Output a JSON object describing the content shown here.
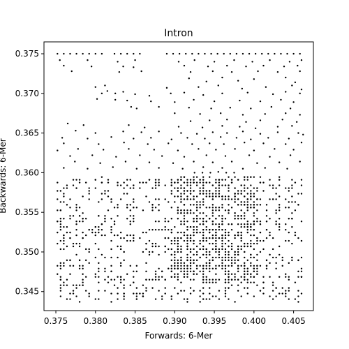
{
  "chart_data": {
    "type": "scatter",
    "title": "Intron",
    "xlabel": "Forwards: 6-Mer",
    "ylabel": "Backwards: 6-Mer",
    "xlim": [
      0.3735,
      0.4075
    ],
    "ylim": [
      0.3426,
      0.3765
    ],
    "xticks": [
      0.375,
      0.38,
      0.385,
      0.39,
      0.395,
      0.4,
      0.405
    ],
    "xtick_labels": [
      "0.375",
      "0.380",
      "0.385",
      "0.390",
      "0.395",
      "0.400",
      "0.405"
    ],
    "yticks": [
      0.345,
      0.35,
      0.355,
      0.36,
      0.365,
      0.37,
      0.375
    ],
    "ytick_labels": [
      "0.345",
      "0.350",
      "0.355",
      "0.360",
      "0.365",
      "0.370",
      "0.375"
    ],
    "grid": false,
    "marker_color": "#000000",
    "series": [
      {
        "points": [
          [
            0.3752,
            0.375
          ],
          [
            0.376,
            0.375
          ],
          [
            0.3768,
            0.375
          ],
          [
            0.3776,
            0.375
          ],
          [
            0.3784,
            0.375
          ],
          [
            0.3792,
            0.375
          ],
          [
            0.38,
            0.375
          ],
          [
            0.3808,
            0.375
          ],
          [
            0.3824,
            0.375
          ],
          [
            0.3832,
            0.375
          ],
          [
            0.384,
            0.375
          ],
          [
            0.3848,
            0.375
          ],
          [
            0.3856,
            0.375
          ],
          [
            0.389,
            0.375
          ],
          [
            0.3898,
            0.375
          ],
          [
            0.3906,
            0.375
          ],
          [
            0.3914,
            0.375
          ],
          [
            0.3922,
            0.375
          ],
          [
            0.393,
            0.375
          ],
          [
            0.3938,
            0.375
          ],
          [
            0.3946,
            0.375
          ],
          [
            0.3954,
            0.375
          ],
          [
            0.3962,
            0.375
          ],
          [
            0.397,
            0.375
          ],
          [
            0.3978,
            0.375
          ],
          [
            0.3986,
            0.375
          ],
          [
            0.3994,
            0.375
          ],
          [
            0.4002,
            0.375
          ],
          [
            0.401,
            0.375
          ],
          [
            0.4018,
            0.375
          ],
          [
            0.4026,
            0.375
          ],
          [
            0.4034,
            0.375
          ],
          [
            0.4042,
            0.375
          ],
          [
            0.405,
            0.375
          ],
          [
            0.4058,
            0.375
          ],
          [
            0.3755,
            0.3742
          ],
          [
            0.379,
            0.3742
          ],
          [
            0.3828,
            0.374
          ],
          [
            0.385,
            0.3742
          ],
          [
            0.3905,
            0.374
          ],
          [
            0.3925,
            0.3742
          ],
          [
            0.395,
            0.374
          ],
          [
            0.3975,
            0.3742
          ],
          [
            0.3998,
            0.374
          ],
          [
            0.402,
            0.3742
          ],
          [
            0.4045,
            0.374
          ],
          [
            0.406,
            0.3742
          ],
          [
            0.376,
            0.3735
          ],
          [
            0.3795,
            0.3734
          ],
          [
            0.3835,
            0.3734
          ],
          [
            0.3848,
            0.3733
          ],
          [
            0.3912,
            0.3735
          ],
          [
            0.3942,
            0.3734
          ],
          [
            0.3966,
            0.3735
          ],
          [
            0.399,
            0.3734
          ],
          [
            0.4012,
            0.3735
          ],
          [
            0.4038,
            0.3734
          ],
          [
            0.4055,
            0.3735
          ],
          [
            0.377,
            0.3728
          ],
          [
            0.383,
            0.3727
          ],
          [
            0.3858,
            0.3728
          ],
          [
            0.392,
            0.3727
          ],
          [
            0.3948,
            0.3728
          ],
          [
            0.3972,
            0.3727
          ],
          [
            0.4005,
            0.3728
          ],
          [
            0.403,
            0.3727
          ],
          [
            0.4058,
            0.3728
          ],
          [
            0.396,
            0.372
          ],
          [
            0.394,
            0.3715
          ],
          [
            0.398,
            0.3716
          ],
          [
            0.4,
            0.3718
          ],
          [
            0.404,
            0.372
          ],
          [
            0.3918,
            0.3719
          ],
          [
            0.4052,
            0.3714
          ],
          [
            0.38,
            0.3708
          ],
          [
            0.3812,
            0.371
          ],
          [
            0.389,
            0.3707
          ],
          [
            0.393,
            0.3708
          ],
          [
            0.3955,
            0.371
          ],
          [
            0.3985,
            0.3706
          ],
          [
            0.4015,
            0.3708
          ],
          [
            0.4048,
            0.371
          ],
          [
            0.406,
            0.3705
          ],
          [
            0.3808,
            0.37
          ],
          [
            0.3815,
            0.3703
          ],
          [
            0.3825,
            0.37
          ],
          [
            0.3835,
            0.3702
          ],
          [
            0.385,
            0.3699
          ],
          [
            0.3868,
            0.3697
          ],
          [
            0.3895,
            0.37
          ],
          [
            0.3912,
            0.3701
          ],
          [
            0.3936,
            0.3698
          ],
          [
            0.396,
            0.37
          ],
          [
            0.3992,
            0.3701
          ],
          [
            0.4024,
            0.3699
          ],
          [
            0.404,
            0.3702
          ],
          [
            0.4058,
            0.37
          ],
          [
            0.3802,
            0.3693
          ],
          [
            0.3825,
            0.3692
          ],
          [
            0.384,
            0.3691
          ],
          [
            0.387,
            0.369
          ],
          [
            0.39,
            0.3689
          ],
          [
            0.3924,
            0.3692
          ],
          [
            0.395,
            0.369
          ],
          [
            0.3982,
            0.3691
          ],
          [
            0.4008,
            0.369
          ],
          [
            0.4034,
            0.3692
          ],
          [
            0.405,
            0.3689
          ],
          [
            0.3845,
            0.3683
          ],
          [
            0.3852,
            0.3681
          ],
          [
            0.388,
            0.3683
          ],
          [
            0.3918,
            0.3682
          ],
          [
            0.3946,
            0.3681
          ],
          [
            0.397,
            0.3682
          ],
          [
            0.3996,
            0.3681
          ],
          [
            0.4022,
            0.3683
          ],
          [
            0.4046,
            0.3681
          ],
          [
            0.39,
            0.3675
          ],
          [
            0.3932,
            0.3674
          ],
          [
            0.3958,
            0.3675
          ],
          [
            0.3986,
            0.3673
          ],
          [
            0.4014,
            0.3674
          ],
          [
            0.404,
            0.3675
          ],
          [
            0.4058,
            0.3673
          ],
          [
            0.392,
            0.3665
          ],
          [
            0.3944,
            0.3666
          ],
          [
            0.3966,
            0.3667
          ],
          [
            0.399,
            0.3664
          ],
          [
            0.4008,
            0.3666
          ],
          [
            0.4036,
            0.3667
          ],
          [
            0.4054,
            0.3664
          ],
          [
            0.3905,
            0.3658
          ],
          [
            0.3935,
            0.3657
          ],
          [
            0.396,
            0.3659
          ],
          [
            0.3982,
            0.3658
          ],
          [
            0.4002,
            0.3656
          ],
          [
            0.403,
            0.3658
          ],
          [
            0.4048,
            0.3659
          ],
          [
            0.3765,
            0.3662
          ],
          [
            0.3785,
            0.366
          ],
          [
            0.3842,
            0.366
          ],
          [
            0.3862,
            0.3657
          ],
          [
            0.3775,
            0.3653
          ],
          [
            0.38,
            0.365
          ],
          [
            0.3835,
            0.3652
          ],
          [
            0.3858,
            0.3651
          ],
          [
            0.388,
            0.3652
          ],
          [
            0.3908,
            0.365
          ],
          [
            0.3928,
            0.3649
          ],
          [
            0.3948,
            0.3651
          ],
          [
            0.3966,
            0.365
          ],
          [
            0.3986,
            0.3652
          ],
          [
            0.4008,
            0.3649
          ],
          [
            0.403,
            0.3651
          ],
          [
            0.4056,
            0.365
          ],
          [
            0.4062,
            0.3648
          ],
          [
            0.3758,
            0.3644
          ],
          [
            0.379,
            0.3643
          ],
          [
            0.382,
            0.3645
          ],
          [
            0.3848,
            0.3643
          ],
          [
            0.387,
            0.3644
          ],
          [
            0.3896,
            0.3642
          ],
          [
            0.3916,
            0.3644
          ],
          [
            0.3938,
            0.3643
          ],
          [
            0.3958,
            0.3645
          ],
          [
            0.3978,
            0.3644
          ],
          [
            0.3996,
            0.3642
          ],
          [
            0.4018,
            0.3644
          ],
          [
            0.4044,
            0.3643
          ],
          [
            0.376,
            0.3637
          ],
          [
            0.3804,
            0.3636
          ],
          [
            0.3836,
            0.3638
          ],
          [
            0.3866,
            0.3636
          ],
          [
            0.3892,
            0.3637
          ],
          [
            0.3922,
            0.3636
          ],
          [
            0.3944,
            0.3637
          ],
          [
            0.3962,
            0.3636
          ],
          [
            0.3988,
            0.3638
          ],
          [
            0.4012,
            0.3637
          ],
          [
            0.404,
            0.3636
          ],
          [
            0.406,
            0.3638
          ],
          [
            0.3752,
            0.3628
          ],
          [
            0.3778,
            0.363
          ],
          [
            0.381,
            0.3629
          ],
          [
            0.3842,
            0.363
          ],
          [
            0.3874,
            0.3629
          ],
          [
            0.3904,
            0.3628
          ],
          [
            0.393,
            0.363
          ],
          [
            0.3952,
            0.3629
          ],
          [
            0.3976,
            0.363
          ],
          [
            0.4,
            0.3628
          ],
          [
            0.4026,
            0.363
          ],
          [
            0.405,
            0.3629
          ],
          [
            0.3768,
            0.3621
          ],
          [
            0.3796,
            0.3622
          ],
          [
            0.3826,
            0.362
          ],
          [
            0.3856,
            0.3622
          ],
          [
            0.3884,
            0.3621
          ],
          [
            0.3912,
            0.362
          ],
          [
            0.394,
            0.3622
          ],
          [
            0.3964,
            0.3621
          ],
          [
            0.3994,
            0.3622
          ],
          [
            0.402,
            0.362
          ],
          [
            0.4046,
            0.3622
          ],
          [
            0.3774,
            0.3614
          ],
          [
            0.3806,
            0.3612
          ],
          [
            0.3838,
            0.3614
          ],
          [
            0.3868,
            0.3613
          ],
          [
            0.3898,
            0.3612
          ],
          [
            0.3924,
            0.3614
          ],
          [
            0.3948,
            0.3613
          ],
          [
            0.3972,
            0.3614
          ],
          [
            0.4004,
            0.3612
          ],
          [
            0.4032,
            0.3613
          ],
          [
            0.4058,
            0.3614
          ],
          [
            0.376,
            0.3606
          ],
          [
            0.379,
            0.3605
          ],
          [
            0.3822,
            0.3607
          ],
          [
            0.3852,
            0.3605
          ],
          [
            0.388,
            0.3606
          ],
          [
            0.391,
            0.3605
          ],
          [
            0.3936,
            0.3607
          ],
          [
            0.396,
            0.3606
          ],
          [
            0.3986,
            0.3605
          ],
          [
            0.4014,
            0.3606
          ],
          [
            0.4042,
            0.3605
          ],
          [
            0.3925,
            0.36
          ],
          [
            0.3935,
            0.36
          ],
          [
            0.3945,
            0.36
          ],
          [
            0.3955,
            0.3601
          ],
          [
            0.3965,
            0.36
          ],
          [
            0.3975,
            0.36
          ]
        ]
      }
    ],
    "dense_region": {
      "x_range": [
        0.375,
        0.4062
      ],
      "y_range": [
        0.3438,
        0.3595
      ],
      "count": 1500,
      "dense_core": {
        "x_range": [
          0.3895,
          0.4005
        ],
        "y_range": [
          0.346,
          0.3595
        ]
      }
    }
  }
}
